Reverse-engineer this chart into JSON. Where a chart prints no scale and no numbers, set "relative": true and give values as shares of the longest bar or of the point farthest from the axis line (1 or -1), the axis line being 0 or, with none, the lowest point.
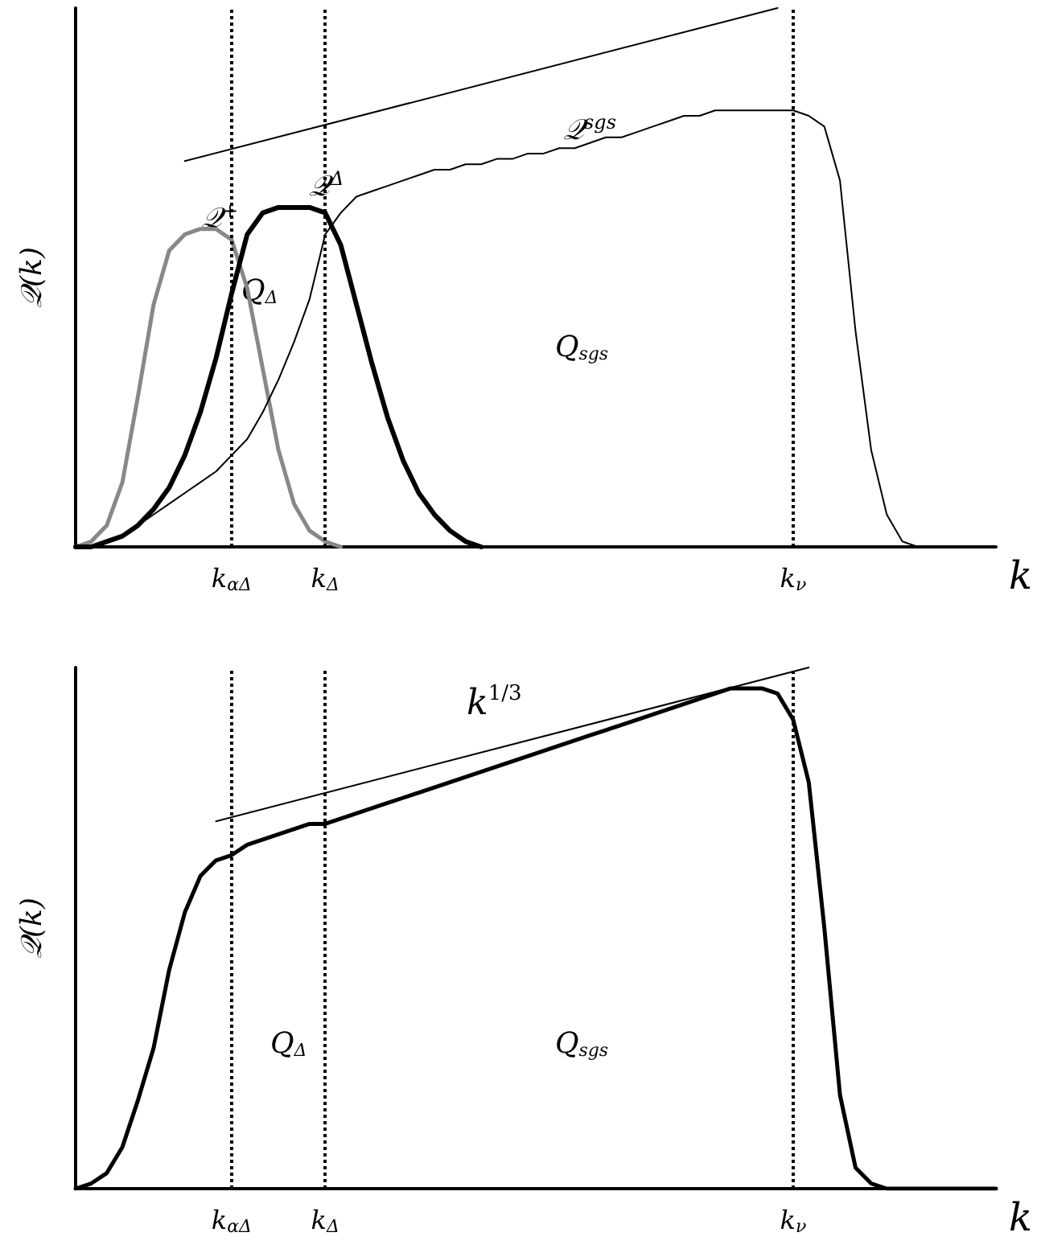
{
  "chart_data": [
    {
      "type": "line",
      "relative": true,
      "ylabel": "𝒬(k)",
      "xlabel": "k",
      "categories": [
        null,
        null,
        null,
        null,
        null,
        null,
        null,
        null,
        null,
        null,
        "k$_{αΔ}$",
        null,
        null,
        null,
        null,
        null,
        "k$_{Δ}$",
        null,
        null,
        null,
        null,
        null,
        null,
        null,
        null,
        null,
        null,
        null,
        null,
        null,
        null,
        null,
        null,
        null,
        null,
        null,
        null,
        null,
        null,
        null,
        null,
        null,
        null,
        null,
        null,
        null,
        "k$_{ν}$",
        null,
        null,
        null,
        null,
        null,
        null,
        null,
        null,
        null,
        null,
        null,
        null,
        null
      ],
      "series": [
        {
          "color": "#888888",
          "values": [
            0,
            0.01,
            0.04,
            0.12,
            0.28,
            0.45,
            0.55,
            0.58,
            0.59,
            0.59,
            0.57,
            0.48,
            0.33,
            0.18,
            0.08,
            0.03,
            0.01,
            0,
            null,
            null,
            null,
            null,
            null,
            null,
            null,
            null,
            null,
            null,
            null,
            null,
            null,
            null,
            null,
            null,
            null,
            null,
            null,
            null,
            null,
            null,
            null,
            null,
            null,
            null,
            null,
            null,
            null,
            null,
            null,
            null,
            null,
            null,
            null,
            null,
            null,
            null,
            null,
            null,
            null,
            null
          ]
        },
        {
          "color": "#000000",
          "values": [
            0,
            0,
            0.01,
            0.02,
            0.04,
            0.07,
            0.11,
            0.17,
            0.25,
            0.35,
            0.47,
            0.58,
            0.62,
            0.63,
            0.63,
            0.63,
            0.62,
            0.56,
            0.45,
            0.34,
            0.24,
            0.16,
            0.1,
            0.06,
            0.03,
            0.01,
            0,
            null,
            null,
            null,
            null,
            null,
            null,
            null,
            null,
            null,
            null,
            null,
            null,
            null,
            null,
            null,
            null,
            null,
            null,
            null,
            null,
            null,
            null,
            null,
            null,
            null,
            null,
            null,
            null,
            null,
            null,
            null,
            null,
            null
          ]
        },
        {
          "color": "#000000",
          "values": [
            0,
            0,
            0.01,
            0.02,
            0.04,
            0.06,
            0.08,
            0.1,
            0.12,
            0.14,
            0.17,
            0.2,
            0.25,
            0.31,
            0.38,
            0.46,
            0.58,
            0.62,
            0.65,
            0.66,
            0.67,
            0.68,
            0.69,
            0.7,
            0.7,
            0.71,
            0.71,
            0.72,
            0.72,
            0.73,
            0.73,
            0.74,
            0.74,
            0.75,
            0.76,
            0.76,
            0.77,
            0.78,
            0.79,
            0.8,
            0.8,
            0.81,
            0.81,
            0.81,
            0.81,
            0.81,
            0.81,
            0.8,
            0.78,
            0.68,
            0.4,
            0.18,
            0.06,
            0.01,
            0,
            0,
            0,
            0,
            0,
            0
          ]
        },
        {
          "color": "#000000",
          "values": [
            null,
            null,
            null,
            null,
            null,
            null,
            null,
            0.716,
            null,
            null,
            null,
            null,
            null,
            null,
            null,
            null,
            null,
            null,
            null,
            null,
            null,
            null,
            null,
            null,
            null,
            null,
            null,
            null,
            null,
            null,
            null,
            null,
            null,
            null,
            null,
            null,
            null,
            null,
            null,
            null,
            null,
            null,
            null,
            null,
            null,
            1,
            null,
            null,
            null,
            null,
            null,
            null,
            null,
            null,
            null,
            null,
            null,
            null,
            null,
            null
          ]
        }
      ],
      "ref_lines": [
        {
          "axis": "x",
          "value": "k$_{αΔ}$",
          "line_style": "dotted",
          "color": "#000000"
        },
        {
          "axis": "x",
          "value": "k$_{Δ}$",
          "line_style": "dotted",
          "color": "#000000"
        },
        {
          "axis": "x",
          "value": "k$_{ν}$",
          "line_style": "dotted",
          "color": "#000000"
        }
      ],
      "annotations": [
        "𝒬$^{+}$",
        "𝒬$^{Δ}$",
        "𝒬$^{sgs}$",
        "Q$_{Δ}$",
        "Q$_{sgs}$"
      ],
      "grid": false,
      "legend": false,
      "marker": "none"
    },
    {
      "type": "line",
      "relative": true,
      "ylabel": "𝒬(k)",
      "xlabel": "k",
      "categories": [
        null,
        null,
        null,
        null,
        null,
        null,
        null,
        null,
        null,
        null,
        "k$_{αΔ}$",
        null,
        null,
        null,
        null,
        null,
        "k$_{Δ}$",
        null,
        null,
        null,
        null,
        null,
        null,
        null,
        null,
        null,
        null,
        null,
        null,
        null,
        null,
        null,
        null,
        null,
        null,
        null,
        null,
        null,
        null,
        null,
        null,
        null,
        null,
        null,
        null,
        null,
        "k$_{ν}$",
        null,
        null,
        null,
        null,
        null,
        null,
        null,
        null,
        null,
        null,
        null,
        null,
        null
      ],
      "series": [
        {
          "color": "#000000",
          "values": [
            0,
            0.01,
            0.03,
            0.08,
            0.17,
            0.27,
            0.42,
            0.53,
            0.6,
            0.63,
            0.64,
            0.66,
            0.67,
            0.68,
            0.69,
            0.7,
            0.7,
            0.71,
            0.72,
            0.73,
            0.74,
            0.75,
            0.76,
            0.77,
            0.78,
            0.79,
            0.8,
            0.81,
            0.82,
            0.83,
            0.84,
            0.85,
            0.86,
            0.87,
            0.88,
            0.89,
            0.9,
            0.91,
            0.92,
            0.93,
            0.94,
            0.95,
            0.96,
            0.96,
            0.96,
            0.95,
            0.9,
            0.78,
            0.5,
            0.18,
            0.04,
            0.01,
            0,
            0,
            0,
            0,
            0,
            0,
            0,
            0
          ]
        },
        {
          "name": "k$^{1/3}$",
          "color": "#000000",
          "values": [
            null,
            null,
            null,
            null,
            null,
            null,
            null,
            null,
            null,
            0.705,
            null,
            null,
            null,
            null,
            null,
            null,
            null,
            null,
            null,
            null,
            null,
            null,
            null,
            null,
            null,
            null,
            null,
            null,
            null,
            null,
            null,
            null,
            null,
            null,
            null,
            null,
            null,
            null,
            null,
            null,
            null,
            null,
            null,
            null,
            null,
            null,
            null,
            1,
            null,
            null,
            null,
            null,
            null,
            null,
            null,
            null,
            null,
            null,
            null,
            null
          ]
        }
      ],
      "ref_lines": [
        {
          "axis": "x",
          "value": "k$_{αΔ}$",
          "line_style": "dotted",
          "color": "#000000"
        },
        {
          "axis": "x",
          "value": "k$_{Δ}$",
          "line_style": "dotted",
          "color": "#000000"
        },
        {
          "axis": "x",
          "value": "k$_{ν}$",
          "line_style": "dotted",
          "color": "#000000"
        }
      ],
      "annotations": [
        "Q$_{Δ}$",
        "Q$_{sgs}$"
      ],
      "grid": false,
      "legend": false,
      "marker": "none"
    }
  ]
}
